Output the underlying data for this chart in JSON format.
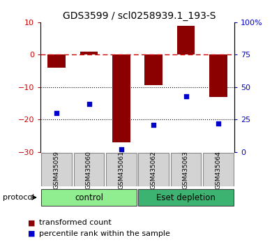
{
  "title": "GDS3599 / scl0258939.1_193-S",
  "samples": [
    "GSM435059",
    "GSM435060",
    "GSM435061",
    "GSM435062",
    "GSM435063",
    "GSM435064"
  ],
  "red_values": [
    -4.0,
    1.0,
    -27.0,
    -9.5,
    9.0,
    -13.0
  ],
  "blue_values": [
    30,
    37,
    2,
    21,
    43,
    22
  ],
  "left_ylim": [
    -30,
    10
  ],
  "right_ylim": [
    0,
    100
  ],
  "left_yticks": [
    10,
    0,
    -10,
    -20,
    -30
  ],
  "right_yticks": [
    100,
    75,
    50,
    25,
    0
  ],
  "right_yticklabels": [
    "100%",
    "75",
    "50",
    "25",
    "0"
  ],
  "groups": [
    {
      "label": "control",
      "indices": [
        0,
        1,
        2
      ],
      "color": "#90EE90"
    },
    {
      "label": "Eset depletion",
      "indices": [
        3,
        4,
        5
      ],
      "color": "#3CB371"
    }
  ],
  "protocol_label": "protocol",
  "bar_color": "#8B0000",
  "scatter_color": "#0000CC",
  "hline_color": "#CC0000",
  "hline_style": "--",
  "dotted_lines": [
    -10,
    -20
  ],
  "bar_width": 0.55,
  "legend_red_label": "transformed count",
  "legend_blue_label": "percentile rank within the sample",
  "tick_label_color_left": "#CC0000",
  "tick_label_color_right": "#0000CC",
  "title_fontsize": 10,
  "axis_fontsize": 8,
  "legend_fontsize": 8,
  "group_label_fontsize": 8.5
}
